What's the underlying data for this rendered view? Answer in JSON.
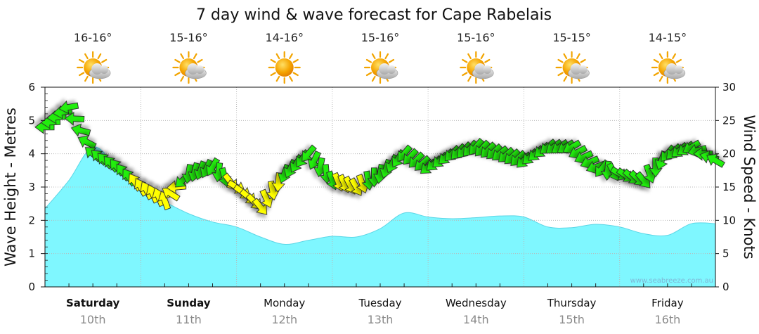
{
  "chart_data": {
    "type": "area",
    "title": "7 day wind & wave forecast for Cape Rabelais",
    "ylabel_left": "Wave Height - Metres",
    "ylabel_right": "Wind Speed - Knots",
    "ylim_left": [
      0,
      6
    ],
    "ylim_right": [
      0,
      30
    ],
    "yticks_left": [
      "0",
      "1",
      "2",
      "3",
      "4",
      "5",
      "6"
    ],
    "yticks_right": [
      "0",
      "5",
      "10",
      "15",
      "20",
      "25",
      "30"
    ],
    "x_days": 7,
    "days": [
      {
        "name": "Saturday",
        "date": "10th",
        "bold": true,
        "temp": "16-16°",
        "weather": "partly-cloudy"
      },
      {
        "name": "Sunday",
        "date": "11th",
        "bold": true,
        "temp": "15-16°",
        "weather": "partly-cloudy"
      },
      {
        "name": "Monday",
        "date": "12th",
        "bold": false,
        "temp": "14-16°",
        "weather": "sunny"
      },
      {
        "name": "Tuesday",
        "date": "13th",
        "bold": false,
        "temp": "15-16°",
        "weather": "partly-cloudy"
      },
      {
        "name": "Wednesday",
        "date": "14th",
        "bold": false,
        "temp": "15-16°",
        "weather": "partly-cloudy"
      },
      {
        "name": "Thursday",
        "date": "15th",
        "bold": false,
        "temp": "15-15°",
        "weather": "partly-cloudy"
      },
      {
        "name": "Friday",
        "date": "16th",
        "bold": false,
        "temp": "14-15°",
        "weather": "partly-cloudy"
      }
    ],
    "wave": {
      "name": "Wave Height",
      "x": [
        0,
        0.25,
        0.5,
        0.75,
        1.0,
        1.25,
        1.5,
        1.75,
        2.0,
        2.25,
        2.5,
        2.75,
        3.0,
        3.25,
        3.5,
        3.75,
        4.0,
        4.25,
        4.5,
        4.75,
        5.0,
        5.25,
        5.5,
        5.75,
        6.0,
        6.25,
        6.5,
        6.75,
        7.0
      ],
      "values": [
        2.35,
        3.2,
        4.2,
        3.6,
        2.85,
        2.55,
        2.2,
        1.95,
        1.8,
        1.5,
        1.28,
        1.4,
        1.52,
        1.5,
        1.75,
        2.22,
        2.1,
        2.05,
        2.08,
        2.13,
        2.1,
        1.8,
        1.78,
        1.88,
        1.8,
        1.6,
        1.55,
        1.9,
        1.9
      ]
    },
    "wind": {
      "name": "Wind Speed",
      "x": [
        0,
        0.25,
        0.5,
        0.75,
        1.0,
        1.25,
        1.5,
        1.75,
        2.0,
        2.25,
        2.5,
        2.75,
        3.0,
        3.25,
        3.5,
        3.75,
        4.0,
        4.25,
        4.5,
        4.75,
        5.0,
        5.25,
        5.5,
        5.75,
        6.0,
        6.25,
        6.5,
        6.75,
        7.0
      ],
      "knots": [
        24,
        27,
        20,
        18,
        15,
        13,
        17,
        18,
        15,
        12,
        17,
        20,
        16,
        15,
        17,
        20,
        18,
        20,
        21,
        20,
        19,
        21,
        21,
        18,
        17,
        16,
        20,
        21,
        19
      ],
      "direction_deg": [
        90,
        80,
        130,
        140,
        150,
        160,
        10,
        30,
        300,
        320,
        20,
        40,
        340,
        330,
        10,
        40,
        50,
        45,
        40,
        50,
        45,
        50,
        60,
        70,
        300,
        320,
        40,
        60,
        120
      ],
      "colors": [
        "#22ee11",
        "#ffff00"
      ],
      "threshold_knots": 16
    },
    "credit": "www.seabreeze.com.au"
  }
}
